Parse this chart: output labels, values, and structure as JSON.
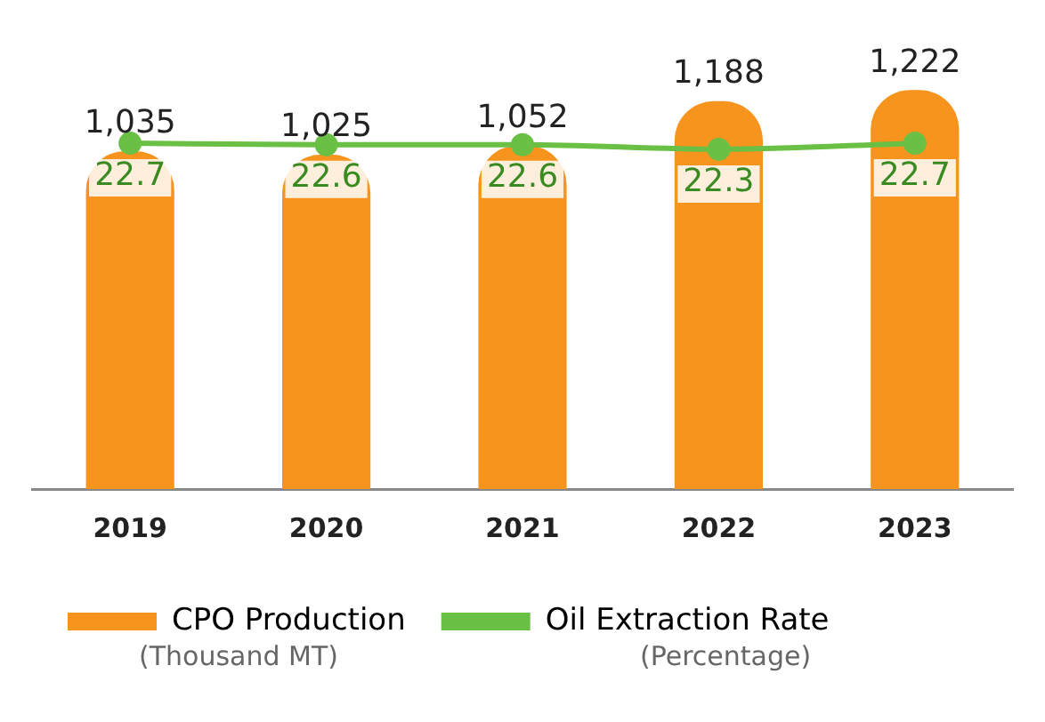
{
  "chart_data": {
    "type": "bar",
    "categories": [
      "2019",
      "2020",
      "2021",
      "2022",
      "2023"
    ],
    "series": [
      {
        "name": "CPO Production",
        "type": "bar",
        "color": "#f7941d",
        "values": [
          1035,
          1025,
          1052,
          1188,
          1222
        ],
        "value_labels": [
          "1,035",
          "1,025",
          "1,052",
          "1,188",
          "1,222"
        ]
      },
      {
        "name": "Oil Extraction Rate",
        "type": "line",
        "axis": "y2",
        "color": "#6abf45",
        "values": [
          22.7,
          22.6,
          22.6,
          22.3,
          22.7
        ]
      }
    ],
    "tick_labels": "x",
    "grid": false,
    "legend": "bottom",
    "marker": "circle",
    "line_style": "solid",
    "data_labels": true,
    "annotations": [
      "(Thousand MT)",
      "(Percentage)"
    ]
  }
}
